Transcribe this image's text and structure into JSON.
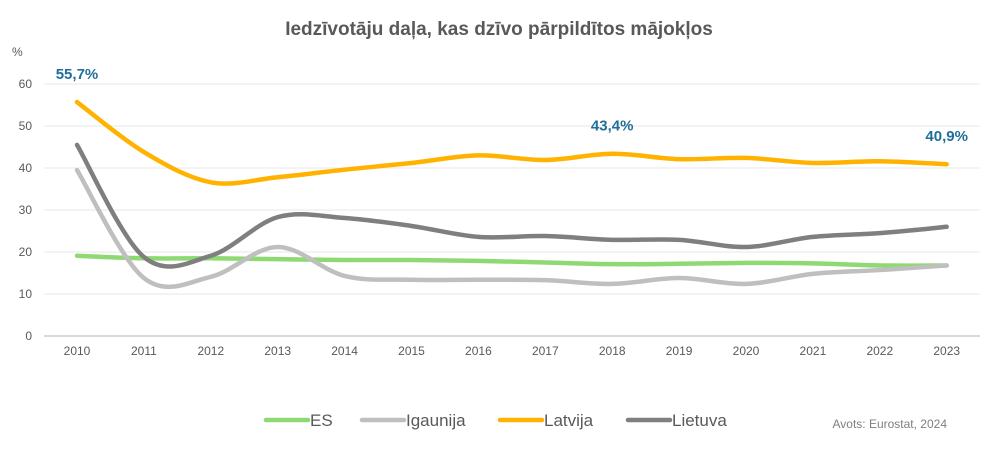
{
  "chart_data": {
    "type": "line",
    "title": "Iedzīvotāju daļa, kas dzīvo pārpildītos mājokļos",
    "ylabel": "%",
    "xlabel": "",
    "ylim": [
      0,
      60
    ],
    "yticks": [
      0,
      10,
      20,
      30,
      40,
      50,
      60
    ],
    "grid": true,
    "smooth": true,
    "legend_position": "bottom",
    "categories": [
      "2010",
      "2011",
      "2012",
      "2013",
      "2014",
      "2015",
      "2016",
      "2017",
      "2018",
      "2019",
      "2020",
      "2021",
      "2022",
      "2023"
    ],
    "series": [
      {
        "name": "ES",
        "color": "#8fd974",
        "values": [
          19.1,
          18.5,
          18.5,
          18.3,
          18.1,
          18.1,
          17.9,
          17.5,
          17.1,
          17.2,
          17.4,
          17.3,
          16.8,
          16.8
        ]
      },
      {
        "name": "Igaunija",
        "color": "#bfbfbf",
        "values": [
          39.5,
          13.8,
          14.1,
          21.2,
          14.3,
          13.4,
          13.4,
          13.3,
          12.4,
          13.8,
          12.4,
          14.8,
          15.7,
          16.8
        ]
      },
      {
        "name": "Latvija",
        "color": "#ffb300",
        "values": [
          55.7,
          43.8,
          36.6,
          37.8,
          39.6,
          41.2,
          43.0,
          41.9,
          43.4,
          42.1,
          42.4,
          41.2,
          41.6,
          40.9
        ]
      },
      {
        "name": "Lietuva",
        "color": "#7f7f7f",
        "values": [
          45.5,
          18.8,
          19.1,
          28.3,
          28.1,
          26.2,
          23.6,
          23.8,
          22.9,
          22.9,
          21.2,
          23.6,
          24.5,
          26.0
        ]
      }
    ],
    "annotations": [
      {
        "series": "Latvija",
        "category": "2010",
        "text": "55,7%"
      },
      {
        "series": "Latvija",
        "category": "2018",
        "text": "43,4%"
      },
      {
        "series": "Latvija",
        "category": "2023",
        "text": "40,9%"
      }
    ],
    "annotation_color": "#1f6f9a",
    "source": "Avots: Eurostat, 2024"
  }
}
